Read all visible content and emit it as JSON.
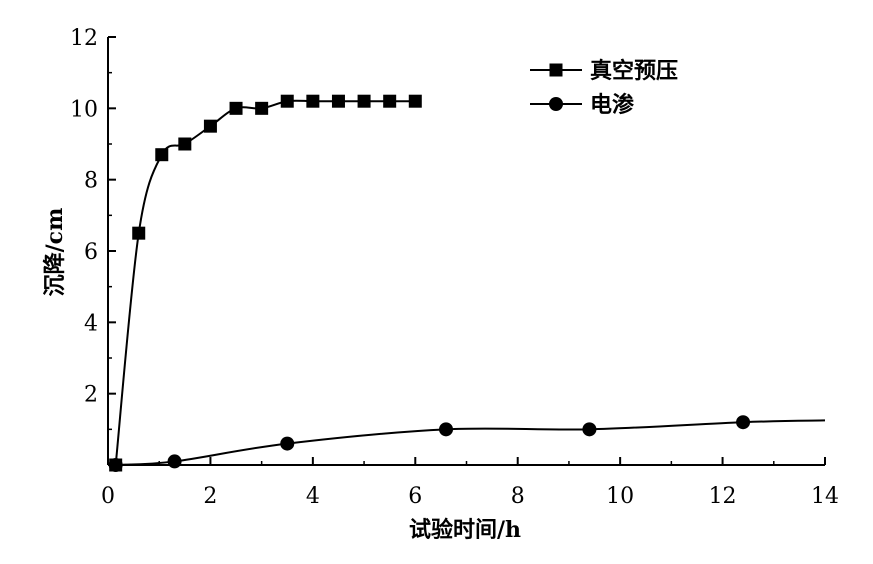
{
  "chart_data": {
    "type": "line",
    "title": "",
    "xlabel": "试验时间/h",
    "ylabel": "沉降/cm",
    "xlim": [
      0,
      14
    ],
    "ylim": [
      0,
      12
    ],
    "xticks": [
      0,
      2,
      4,
      6,
      8,
      10,
      12,
      14
    ],
    "yticks": [
      2,
      4,
      6,
      8,
      10,
      12
    ],
    "x_tick_labels": [
      "0",
      "2",
      "4",
      "6",
      "8",
      "10",
      "12",
      "14"
    ],
    "y_tick_labels": [
      "2",
      "4",
      "6",
      "8",
      "10",
      "12"
    ],
    "grid": false,
    "legend_position": "top-right",
    "series": [
      {
        "name": "真空预压",
        "marker": "square",
        "color": "#000000",
        "points": [
          [
            0.15,
            0.0
          ],
          [
            0.6,
            6.5
          ],
          [
            1.05,
            8.7
          ],
          [
            1.5,
            9.0
          ],
          [
            2.0,
            9.5
          ],
          [
            2.5,
            10.0
          ],
          [
            3.0,
            10.0
          ],
          [
            3.5,
            10.2
          ],
          [
            4.0,
            10.2
          ],
          [
            4.5,
            10.2
          ],
          [
            5.0,
            10.2
          ],
          [
            5.5,
            10.2
          ],
          [
            6.0,
            10.2
          ]
        ]
      },
      {
        "name": "电渗",
        "marker": "circle",
        "color": "#000000",
        "points": [
          [
            0.15,
            0.0
          ],
          [
            1.3,
            0.1
          ],
          [
            3.5,
            0.6
          ],
          [
            6.6,
            1.0
          ],
          [
            9.4,
            1.0
          ],
          [
            12.4,
            1.2
          ],
          [
            14.0,
            1.25
          ]
        ],
        "marked_count": 6
      }
    ]
  }
}
